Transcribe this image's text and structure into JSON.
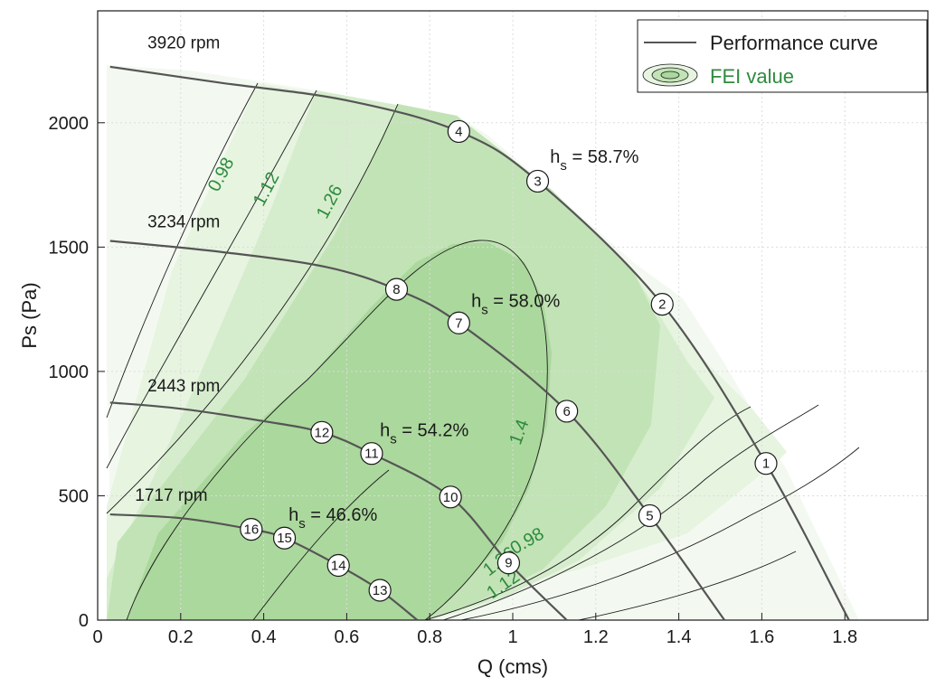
{
  "chart_data": {
    "type": "line",
    "xlabel": "Q (cms)",
    "ylabel": "Ps (Pa)",
    "xlim": [
      0,
      2.0
    ],
    "ylim": [
      0,
      2450
    ],
    "xticks": [
      "0",
      "0.2",
      "0.4",
      "0.6",
      "0.8",
      "1",
      "1.2",
      "1.4",
      "1.6",
      "1.8"
    ],
    "yticks": [
      "0",
      "500",
      "1000",
      "1500",
      "2000"
    ],
    "grid": true,
    "legend": {
      "placement": "top-right",
      "entries": [
        {
          "label": "Performance curve",
          "color": "#555555"
        },
        {
          "label": "FEI value",
          "color": "#2e8b3e"
        }
      ]
    },
    "series": [
      {
        "name": "3920 rpm",
        "x": [
          0.03,
          0.3,
          0.6,
          0.87,
          1.06,
          1.36,
          1.61,
          1.81
        ],
        "y": [
          2225,
          2160,
          2090,
          1965,
          1765,
          1270,
          630,
          0
        ]
      },
      {
        "name": "3234 rpm",
        "x": [
          0.03,
          0.3,
          0.55,
          0.72,
          0.87,
          1.13,
          1.33,
          1.51
        ],
        "y": [
          1525,
          1480,
          1420,
          1330,
          1195,
          840,
          420,
          0
        ]
      },
      {
        "name": "2443 rpm",
        "x": [
          0.03,
          0.2,
          0.4,
          0.54,
          0.66,
          0.85,
          0.99,
          1.13
        ],
        "y": [
          875,
          850,
          800,
          755,
          670,
          495,
          230,
          0
        ]
      },
      {
        "name": "1717 rpm",
        "x": [
          0.03,
          0.2,
          0.37,
          0.45,
          0.58,
          0.68,
          0.77
        ],
        "y": [
          425,
          410,
          365,
          330,
          220,
          120,
          0
        ]
      }
    ],
    "operating_points": [
      {
        "label": "1",
        "x": 1.61,
        "y": 630
      },
      {
        "label": "2",
        "x": 1.36,
        "y": 1270
      },
      {
        "label": "3",
        "x": 1.06,
        "y": 1765
      },
      {
        "label": "4",
        "x": 0.87,
        "y": 1965
      },
      {
        "label": "5",
        "x": 1.33,
        "y": 420
      },
      {
        "label": "6",
        "x": 1.13,
        "y": 840
      },
      {
        "label": "7",
        "x": 0.87,
        "y": 1195
      },
      {
        "label": "8",
        "x": 0.72,
        "y": 1330
      },
      {
        "label": "9",
        "x": 0.99,
        "y": 230
      },
      {
        "label": "10",
        "x": 0.85,
        "y": 495
      },
      {
        "label": "11",
        "x": 0.66,
        "y": 670
      },
      {
        "label": "12",
        "x": 0.54,
        "y": 755
      },
      {
        "label": "13",
        "x": 0.68,
        "y": 120
      },
      {
        "label": "14",
        "x": 0.58,
        "y": 220
      },
      {
        "label": "15",
        "x": 0.45,
        "y": 330
      },
      {
        "label": "16",
        "x": 0.37,
        "y": 365
      }
    ],
    "efficiency_labels": [
      {
        "text": "h",
        "sub": "s",
        "value": " = 58.7%",
        "x": 1.09,
        "y": 1840
      },
      {
        "text": "h",
        "sub": "s",
        "value": " = 58.0%",
        "x": 0.9,
        "y": 1260
      },
      {
        "text": "h",
        "sub": "s",
        "value": " = 54.2%",
        "x": 0.68,
        "y": 740
      },
      {
        "text": "h",
        "sub": "s",
        "value": " = 46.6%",
        "x": 0.46,
        "y": 400
      }
    ],
    "fei_contours": [
      {
        "label": "0.98",
        "label_x": 0.56,
        "label_y": 1780,
        "label_x2": 1.13,
        "label_y2": 150
      },
      {
        "label": "1.12",
        "label_x": 0.79,
        "label_y": 1710,
        "label_x2": 1.03,
        "label_y2": 130
      },
      {
        "label": "1.26",
        "label_x": 1.05,
        "label_y": 1690,
        "label_x2": 1.04,
        "label_y2": 240
      },
      {
        "label": "1.4",
        "label_x": 1.0,
        "label_y": 750
      }
    ],
    "rpm_labels": [
      {
        "text": "3920 rpm",
        "x": 0.12,
        "y": 2300
      },
      {
        "text": "3234 rpm",
        "x": 0.12,
        "y": 1580
      },
      {
        "text": "2443 rpm",
        "x": 0.12,
        "y": 920
      },
      {
        "text": "1717 rpm",
        "x": 0.09,
        "y": 480
      }
    ],
    "colors": {
      "curve": "#555555",
      "fei_text": "#2e8b3e",
      "fill_levels": [
        "#f1f8ee",
        "#e4f3df",
        "#d3ecca",
        "#bfe2b2",
        "#a9d89a"
      ]
    }
  }
}
